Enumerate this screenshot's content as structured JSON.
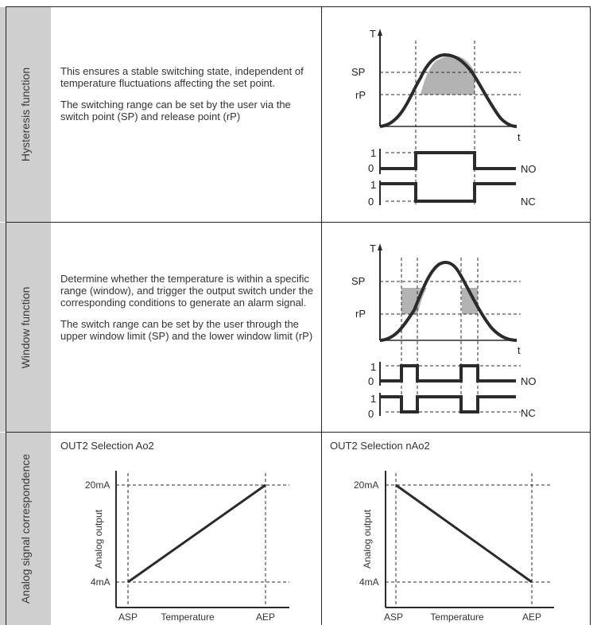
{
  "rows": [
    {
      "label": "Hysteresis function",
      "paragraphs": [
        "This ensures a stable switching state, independent of temperature fluctuations affecting the set point.",
        "The switching range can be set by the user via the switch point (SP) and release point (rP)"
      ]
    },
    {
      "label": "Window function",
      "paragraphs": [
        "Determine whether the temperature is within a specific range (window), and trigger the output switch under the corresponding conditions to generate an alarm signal.",
        "The switch range can be set by the user through the upper window limit (SP) and the lower window limit (rP)"
      ]
    },
    {
      "label": "Analog signal correspondence"
    }
  ],
  "diagram_labels": {
    "temp_axis": "T",
    "time_axis": "t",
    "sp": "SP",
    "rp": "rP",
    "one": "1",
    "zero": "0",
    "no": "NO",
    "nc": "NC"
  },
  "analog": [
    {
      "title": "OUT2 Selection Ao2",
      "ylabel": "Analog output",
      "xlabel": "Temperature",
      "ymax_label": "20mA",
      "ymin_label": "4mA",
      "xmin_label": "ASP",
      "xmax_label": "AEP",
      "direction": "rising"
    },
    {
      "title": "OUT2 Selection nAo2",
      "ylabel": "Analog output",
      "xlabel": "Temperature",
      "ymax_label": "20mA",
      "ymin_label": "4mA",
      "xmin_label": "ASP",
      "xmax_label": "AEP",
      "direction": "falling"
    }
  ],
  "colors": {
    "label_column": "#cfcfcf",
    "shade": "#b3b3b3",
    "line": "#2b2b2b"
  }
}
